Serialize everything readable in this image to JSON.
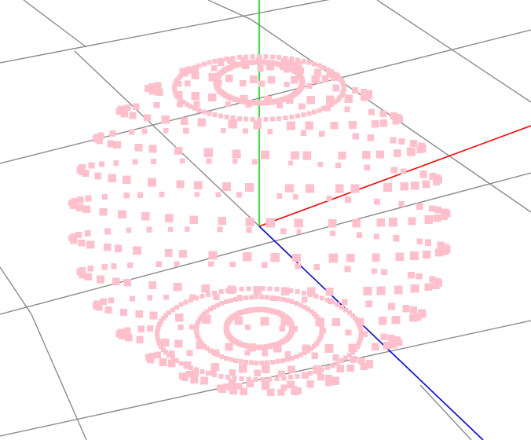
{
  "scene": {
    "background": "#ffffff",
    "grid": {
      "color": "#8a8a8a",
      "visible": true
    },
    "axes": {
      "x": {
        "color": "#ff0000"
      },
      "y": {
        "color": "#00dd00"
      },
      "z": {
        "color": "#0000ff"
      }
    },
    "points": {
      "color": "#ffc0cb",
      "shape": "sphere-shell-with-polar-rings"
    }
  }
}
